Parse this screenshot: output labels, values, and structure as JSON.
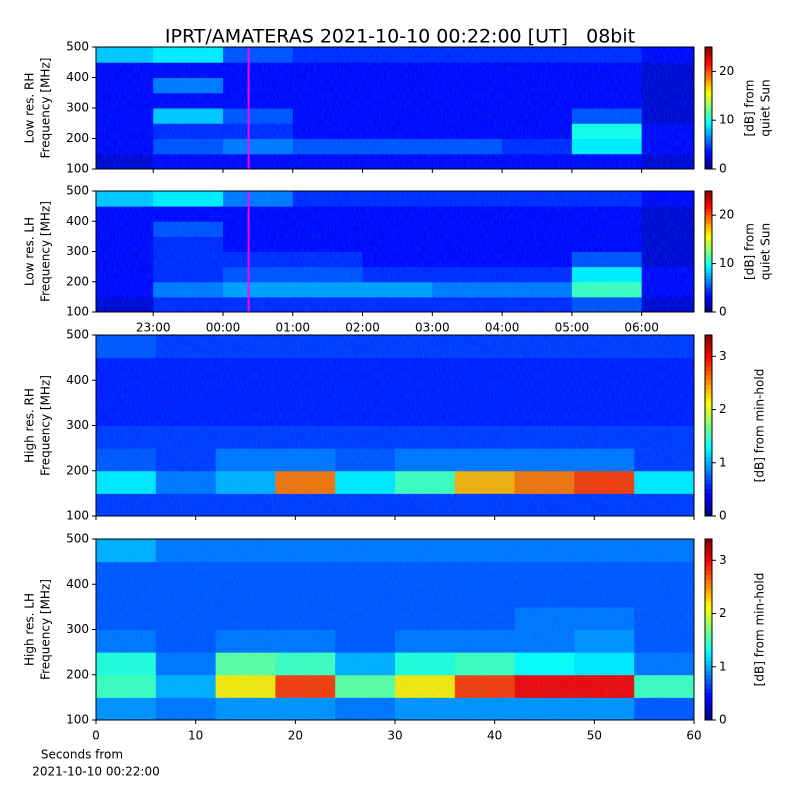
{
  "chart_data": [
    {
      "type": "heatmap",
      "title": "IPRT/AMATERAS 2021-10-10 00:22:00 [UT]   08bit",
      "ylabel": [
        "Low res. RH",
        "Frequency [MHz]"
      ],
      "xlim": [
        22.18,
        30.75
      ],
      "xticks": [
        23,
        24,
        25,
        26,
        27,
        28,
        29,
        30
      ],
      "ylim": [
        100,
        500
      ],
      "yticks": [
        100,
        200,
        300,
        400,
        500
      ],
      "x_edges": [
        22.18,
        23,
        24,
        25,
        26,
        27,
        28,
        29,
        30,
        30.75
      ],
      "y_edges": [
        100,
        150,
        200,
        250,
        300,
        350,
        400,
        450,
        500
      ],
      "z": [
        [
          2,
          3,
          3,
          3,
          3,
          3,
          3,
          3,
          2
        ],
        [
          3,
          5,
          6,
          5,
          5,
          5,
          4,
          9,
          3
        ],
        [
          3,
          4,
          4,
          3,
          3,
          3,
          3,
          10,
          3
        ],
        [
          3,
          8,
          5,
          3,
          3,
          3,
          3,
          5,
          2
        ],
        [
          3,
          3,
          3,
          3,
          3,
          3,
          3,
          3,
          2
        ],
        [
          3,
          6,
          3,
          3,
          3,
          3,
          3,
          3,
          2
        ],
        [
          3,
          3,
          3,
          3,
          3,
          3,
          3,
          3,
          2
        ],
        [
          8,
          9,
          5,
          4,
          4,
          4,
          4,
          4,
          3
        ]
      ],
      "colormap": "jet",
      "clim": [
        0,
        25
      ],
      "cticks": [
        0,
        10,
        20
      ],
      "clabel": [
        "[dB] from",
        "quiet Sun"
      ],
      "marker_x": 24.367,
      "marker_color": "#ff00ff"
    },
    {
      "type": "heatmap",
      "ylabel": [
        "Low res. LH",
        "Frequency [MHz]"
      ],
      "xlim": [
        22.18,
        30.75
      ],
      "xticks": [
        {
          "value": 23,
          "label": "23:00"
        },
        {
          "value": 24,
          "label": "00:00"
        },
        {
          "value": 25,
          "label": "01:00"
        },
        {
          "value": 26,
          "label": "02:00"
        },
        {
          "value": 27,
          "label": "03:00"
        },
        {
          "value": 28,
          "label": "04:00"
        },
        {
          "value": 29,
          "label": "05:00"
        },
        {
          "value": 30,
          "label": "06:00"
        }
      ],
      "ylim": [
        100,
        500
      ],
      "yticks": [
        100,
        200,
        300,
        400,
        500
      ],
      "x_edges": [
        22.18,
        23,
        24,
        25,
        26,
        27,
        28,
        29,
        30,
        30.75
      ],
      "y_edges": [
        100,
        150,
        200,
        250,
        300,
        350,
        400,
        450,
        500
      ],
      "z": [
        [
          2,
          4,
          4,
          4,
          4,
          4,
          4,
          5,
          2
        ],
        [
          3,
          6,
          7,
          7,
          7,
          6,
          6,
          11,
          3
        ],
        [
          3,
          4,
          5,
          5,
          4,
          4,
          4,
          9,
          3
        ],
        [
          3,
          4,
          4,
          4,
          3,
          3,
          3,
          5,
          2
        ],
        [
          3,
          4,
          3,
          3,
          3,
          3,
          3,
          3,
          2
        ],
        [
          3,
          5,
          3,
          3,
          3,
          3,
          3,
          3,
          2
        ],
        [
          3,
          3,
          3,
          3,
          3,
          3,
          3,
          3,
          2
        ],
        [
          8,
          9,
          6,
          4,
          4,
          4,
          4,
          4,
          3
        ]
      ],
      "colormap": "jet",
      "clim": [
        0,
        25
      ],
      "cticks": [
        0,
        10,
        20
      ],
      "clabel": [
        "[dB] from",
        "quiet Sun"
      ],
      "marker_x": 24.367,
      "marker_color": "#ff00ff"
    },
    {
      "type": "heatmap",
      "ylabel": [
        "High res. RH",
        "Frequency [MHz]"
      ],
      "xlim": [
        0,
        60
      ],
      "xticks": [
        0,
        10,
        20,
        30,
        40,
        50,
        60
      ],
      "ylim": [
        100,
        500
      ],
      "yticks": [
        100,
        200,
        300,
        400,
        500
      ],
      "x_edges": [
        0,
        6,
        12,
        18,
        24,
        30,
        36,
        42,
        48,
        54,
        60
      ],
      "y_edges": [
        100,
        150,
        200,
        250,
        300,
        350,
        400,
        450,
        500
      ],
      "z": [
        [
          0.6,
          0.6,
          0.6,
          0.6,
          0.6,
          0.6,
          0.6,
          0.6,
          0.6,
          0.6
        ],
        [
          1.2,
          0.8,
          1,
          2.6,
          1.2,
          1.5,
          2.4,
          2.6,
          2.8,
          1.2
        ],
        [
          0.7,
          0.6,
          0.8,
          0.8,
          0.7,
          0.8,
          0.8,
          0.8,
          0.8,
          0.6
        ],
        [
          0.6,
          0.6,
          0.6,
          0.6,
          0.6,
          0.6,
          0.6,
          0.6,
          0.6,
          0.6
        ],
        [
          0.5,
          0.5,
          0.5,
          0.5,
          0.5,
          0.5,
          0.5,
          0.5,
          0.5,
          0.5
        ],
        [
          0.5,
          0.5,
          0.5,
          0.5,
          0.5,
          0.5,
          0.5,
          0.5,
          0.5,
          0.5
        ],
        [
          0.5,
          0.5,
          0.5,
          0.5,
          0.5,
          0.5,
          0.5,
          0.5,
          0.5,
          0.5
        ],
        [
          0.7,
          0.6,
          0.6,
          0.6,
          0.6,
          0.6,
          0.6,
          0.6,
          0.6,
          0.6
        ]
      ],
      "colormap": "jet",
      "clim": [
        0,
        3.4
      ],
      "cticks": [
        0,
        1,
        2,
        3
      ],
      "clabel": [
        "[dB] from min-hold"
      ]
    },
    {
      "type": "heatmap",
      "ylabel": [
        "High res. LH",
        "Frequency [MHz]"
      ],
      "xlim": [
        0,
        60
      ],
      "xticks": [
        0,
        10,
        20,
        30,
        40,
        50,
        60
      ],
      "xlabel": [
        "Seconds from",
        "2021-10-10 00:22:00"
      ],
      "ylim": [
        100,
        500
      ],
      "yticks": [
        100,
        200,
        300,
        400,
        500
      ],
      "x_edges": [
        0,
        6,
        12,
        18,
        24,
        30,
        36,
        42,
        48,
        54,
        60
      ],
      "y_edges": [
        100,
        150,
        200,
        250,
        300,
        350,
        400,
        450,
        500
      ],
      "z": [
        [
          0.9,
          0.8,
          0.9,
          0.9,
          0.8,
          0.9,
          0.9,
          0.9,
          0.9,
          0.7
        ],
        [
          1.5,
          1,
          2.2,
          2.8,
          1.6,
          2.2,
          2.8,
          3,
          3,
          1.5
        ],
        [
          1.4,
          0.8,
          1.6,
          1.5,
          1,
          1.4,
          1.5,
          1.3,
          1.2,
          0.8
        ],
        [
          0.8,
          0.7,
          0.8,
          0.8,
          0.7,
          0.8,
          0.8,
          0.8,
          0.9,
          0.7
        ],
        [
          0.7,
          0.7,
          0.7,
          0.7,
          0.7,
          0.7,
          0.7,
          0.8,
          0.8,
          0.7
        ],
        [
          0.7,
          0.7,
          0.7,
          0.7,
          0.7,
          0.7,
          0.7,
          0.7,
          0.7,
          0.7
        ],
        [
          0.7,
          0.7,
          0.7,
          0.7,
          0.7,
          0.7,
          0.7,
          0.7,
          0.7,
          0.7
        ],
        [
          1,
          0.8,
          0.8,
          0.8,
          0.8,
          0.8,
          0.8,
          0.8,
          0.8,
          0.8
        ]
      ],
      "colormap": "jet",
      "clim": [
        0,
        3.4
      ],
      "cticks": [
        0,
        1,
        2,
        3
      ],
      "clabel": [
        "[dB] from min-hold"
      ]
    }
  ]
}
